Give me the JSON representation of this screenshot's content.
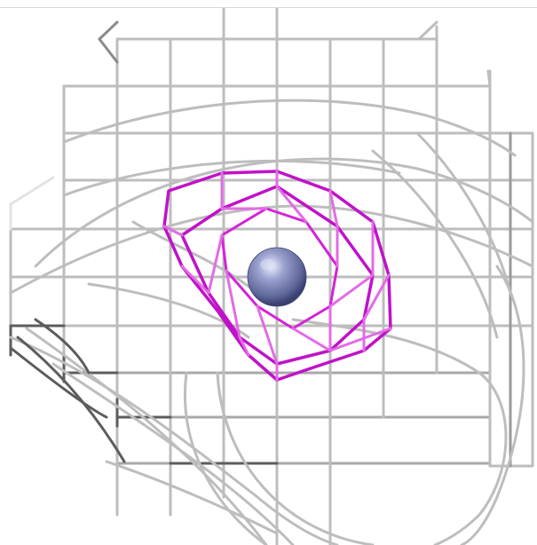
{
  "viewer": {
    "background": "#ffffff",
    "frame_line_color": "#d9d9d9"
  },
  "structure": {
    "cage_color": "#bdbdbd",
    "cage_dark": "#5c5c5c",
    "cage_light": "#e3e3e3",
    "contour_colors": [
      "#c012c8",
      "#d323d8",
      "#e36be6"
    ],
    "atom_color": "#7c84b8",
    "atom_highlight": "#d8dcf2",
    "atom_shadow": "#3d4370"
  }
}
